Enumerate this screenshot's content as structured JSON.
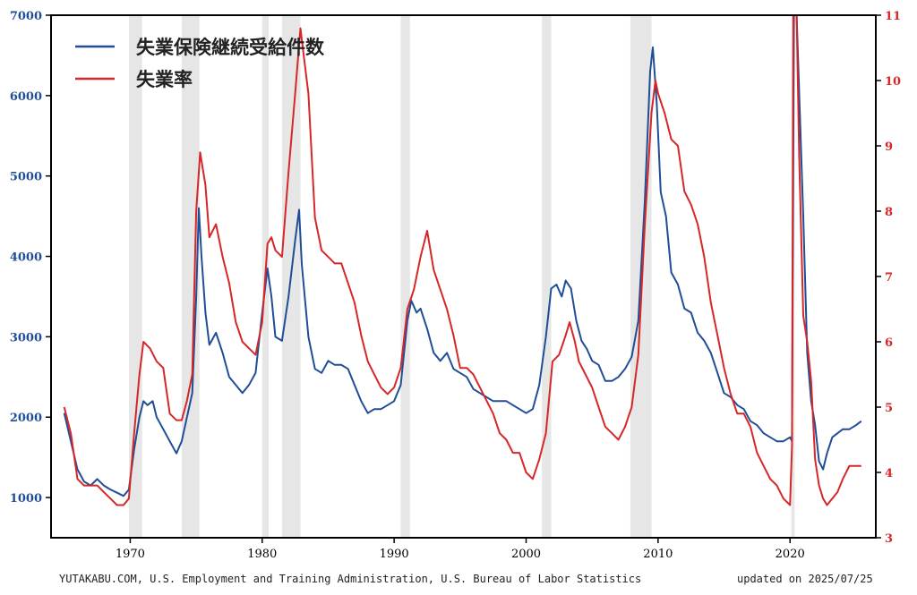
{
  "chart_data": {
    "type": "line",
    "dual_axis": true,
    "x_range": [
      1964,
      2026.5
    ],
    "x_ticks": [
      1970,
      1980,
      1990,
      2000,
      2010,
      2020
    ],
    "y_left": {
      "range": [
        500,
        7000
      ],
      "ticks": [
        1000,
        2000,
        3000,
        4000,
        5000,
        6000,
        7000
      ],
      "color": "#1f4e96"
    },
    "y_right": {
      "range": [
        3,
        11
      ],
      "ticks": [
        3,
        4,
        5,
        6,
        7,
        8,
        9,
        10,
        11
      ],
      "color": "#d62728"
    },
    "grid": false,
    "legend_position": "top-left",
    "recessions": [
      [
        1969.9,
        1970.9
      ],
      [
        1973.9,
        1975.25
      ],
      [
        1980.0,
        1980.5
      ],
      [
        1981.5,
        1982.9
      ],
      [
        1990.5,
        1991.2
      ],
      [
        2001.2,
        2001.9
      ],
      [
        2007.9,
        2009.5
      ],
      [
        2020.1,
        2020.35
      ]
    ],
    "series": [
      {
        "name": "失業保険継続受給件数",
        "axis": "left",
        "color": "#1f4e96",
        "points": [
          [
            1965.0,
            2050
          ],
          [
            1965.5,
            1700
          ],
          [
            1966.0,
            1350
          ],
          [
            1966.5,
            1200
          ],
          [
            1967.0,
            1150
          ],
          [
            1967.5,
            1230
          ],
          [
            1968.0,
            1150
          ],
          [
            1968.5,
            1100
          ],
          [
            1969.0,
            1060
          ],
          [
            1969.5,
            1020
          ],
          [
            1969.9,
            1100
          ],
          [
            1970.3,
            1600
          ],
          [
            1970.7,
            2000
          ],
          [
            1971.0,
            2200
          ],
          [
            1971.3,
            2150
          ],
          [
            1971.7,
            2200
          ],
          [
            1972.0,
            2000
          ],
          [
            1972.5,
            1850
          ],
          [
            1973.0,
            1700
          ],
          [
            1973.5,
            1550
          ],
          [
            1973.9,
            1700
          ],
          [
            1974.3,
            2000
          ],
          [
            1974.7,
            2300
          ],
          [
            1975.0,
            3500
          ],
          [
            1975.2,
            4600
          ],
          [
            1975.4,
            4000
          ],
          [
            1975.7,
            3300
          ],
          [
            1976.0,
            2900
          ],
          [
            1976.5,
            3050
          ],
          [
            1977.0,
            2800
          ],
          [
            1977.5,
            2500
          ],
          [
            1978.0,
            2400
          ],
          [
            1978.5,
            2300
          ],
          [
            1979.0,
            2400
          ],
          [
            1979.5,
            2550
          ],
          [
            1980.0,
            3300
          ],
          [
            1980.4,
            3850
          ],
          [
            1980.7,
            3500
          ],
          [
            1981.0,
            3000
          ],
          [
            1981.5,
            2950
          ],
          [
            1982.0,
            3500
          ],
          [
            1982.5,
            4200
          ],
          [
            1982.8,
            4580
          ],
          [
            1983.0,
            3900
          ],
          [
            1983.5,
            3000
          ],
          [
            1984.0,
            2600
          ],
          [
            1984.5,
            2550
          ],
          [
            1985.0,
            2700
          ],
          [
            1985.5,
            2650
          ],
          [
            1986.0,
            2650
          ],
          [
            1986.5,
            2600
          ],
          [
            1987.0,
            2400
          ],
          [
            1987.5,
            2200
          ],
          [
            1988.0,
            2050
          ],
          [
            1988.5,
            2100
          ],
          [
            1989.0,
            2100
          ],
          [
            1989.5,
            2150
          ],
          [
            1990.0,
            2200
          ],
          [
            1990.5,
            2400
          ],
          [
            1991.0,
            3200
          ],
          [
            1991.3,
            3450
          ],
          [
            1991.7,
            3300
          ],
          [
            1992.0,
            3350
          ],
          [
            1992.5,
            3100
          ],
          [
            1993.0,
            2800
          ],
          [
            1993.5,
            2700
          ],
          [
            1994.0,
            2800
          ],
          [
            1994.5,
            2600
          ],
          [
            1995.0,
            2550
          ],
          [
            1995.5,
            2500
          ],
          [
            1996.0,
            2350
          ],
          [
            1996.5,
            2300
          ],
          [
            1997.0,
            2250
          ],
          [
            1997.5,
            2200
          ],
          [
            1998.0,
            2200
          ],
          [
            1998.5,
            2200
          ],
          [
            1999.0,
            2150
          ],
          [
            1999.5,
            2100
          ],
          [
            2000.0,
            2050
          ],
          [
            2000.5,
            2100
          ],
          [
            2001.0,
            2400
          ],
          [
            2001.5,
            3000
          ],
          [
            2001.9,
            3600
          ],
          [
            2002.3,
            3650
          ],
          [
            2002.7,
            3500
          ],
          [
            2003.0,
            3700
          ],
          [
            2003.4,
            3600
          ],
          [
            2003.8,
            3200
          ],
          [
            2004.2,
            2950
          ],
          [
            2004.6,
            2850
          ],
          [
            2005.0,
            2700
          ],
          [
            2005.5,
            2650
          ],
          [
            2006.0,
            2450
          ],
          [
            2006.5,
            2450
          ],
          [
            2007.0,
            2500
          ],
          [
            2007.5,
            2600
          ],
          [
            2008.0,
            2750
          ],
          [
            2008.5,
            3200
          ],
          [
            2009.0,
            4700
          ],
          [
            2009.4,
            6300
          ],
          [
            2009.6,
            6600
          ],
          [
            2009.9,
            5900
          ],
          [
            2010.2,
            4800
          ],
          [
            2010.6,
            4500
          ],
          [
            2011.0,
            3800
          ],
          [
            2011.5,
            3650
          ],
          [
            2012.0,
            3350
          ],
          [
            2012.5,
            3300
          ],
          [
            2013.0,
            3050
          ],
          [
            2013.5,
            2950
          ],
          [
            2014.0,
            2800
          ],
          [
            2014.5,
            2550
          ],
          [
            2015.0,
            2300
          ],
          [
            2015.5,
            2250
          ],
          [
            2016.0,
            2150
          ],
          [
            2016.5,
            2100
          ],
          [
            2017.0,
            1950
          ],
          [
            2017.5,
            1900
          ],
          [
            2018.0,
            1800
          ],
          [
            2018.5,
            1750
          ],
          [
            2019.0,
            1700
          ],
          [
            2019.5,
            1700
          ],
          [
            2020.0,
            1750
          ],
          [
            2020.15,
            1700
          ],
          [
            2020.3,
            7000
          ],
          [
            2020.5,
            7000
          ],
          [
            2020.8,
            5500
          ],
          [
            2021.0,
            4500
          ],
          [
            2021.3,
            2800
          ],
          [
            2021.6,
            2200
          ],
          [
            2021.9,
            1900
          ],
          [
            2022.2,
            1450
          ],
          [
            2022.5,
            1350
          ],
          [
            2022.8,
            1550
          ],
          [
            2023.2,
            1750
          ],
          [
            2023.6,
            1800
          ],
          [
            2024.0,
            1850
          ],
          [
            2024.5,
            1850
          ],
          [
            2025.0,
            1900
          ],
          [
            2025.4,
            1950
          ]
        ]
      },
      {
        "name": "失業率",
        "axis": "right",
        "color": "#d62728",
        "points": [
          [
            1965.0,
            5.0
          ],
          [
            1965.5,
            4.6
          ],
          [
            1966.0,
            3.9
          ],
          [
            1966.5,
            3.8
          ],
          [
            1967.0,
            3.8
          ],
          [
            1967.5,
            3.8
          ],
          [
            1968.0,
            3.7
          ],
          [
            1968.5,
            3.6
          ],
          [
            1969.0,
            3.5
          ],
          [
            1969.5,
            3.5
          ],
          [
            1969.9,
            3.6
          ],
          [
            1970.3,
            4.6
          ],
          [
            1970.7,
            5.5
          ],
          [
            1971.0,
            6.0
          ],
          [
            1971.5,
            5.9
          ],
          [
            1972.0,
            5.7
          ],
          [
            1972.5,
            5.6
          ],
          [
            1973.0,
            4.9
          ],
          [
            1973.5,
            4.8
          ],
          [
            1973.9,
            4.8
          ],
          [
            1974.3,
            5.1
          ],
          [
            1974.7,
            5.5
          ],
          [
            1975.0,
            8.0
          ],
          [
            1975.3,
            8.9
          ],
          [
            1975.7,
            8.4
          ],
          [
            1976.0,
            7.6
          ],
          [
            1976.5,
            7.8
          ],
          [
            1977.0,
            7.3
          ],
          [
            1977.5,
            6.9
          ],
          [
            1978.0,
            6.3
          ],
          [
            1978.5,
            6.0
          ],
          [
            1979.0,
            5.9
          ],
          [
            1979.5,
            5.8
          ],
          [
            1980.0,
            6.3
          ],
          [
            1980.4,
            7.5
          ],
          [
            1980.7,
            7.6
          ],
          [
            1981.0,
            7.4
          ],
          [
            1981.5,
            7.3
          ],
          [
            1982.0,
            8.6
          ],
          [
            1982.5,
            9.8
          ],
          [
            1982.9,
            10.8
          ],
          [
            1983.2,
            10.3
          ],
          [
            1983.5,
            9.8
          ],
          [
            1984.0,
            7.9
          ],
          [
            1984.5,
            7.4
          ],
          [
            1985.0,
            7.3
          ],
          [
            1985.5,
            7.2
          ],
          [
            1986.0,
            7.2
          ],
          [
            1986.5,
            6.9
          ],
          [
            1987.0,
            6.6
          ],
          [
            1987.5,
            6.1
          ],
          [
            1988.0,
            5.7
          ],
          [
            1988.5,
            5.5
          ],
          [
            1989.0,
            5.3
          ],
          [
            1989.5,
            5.2
          ],
          [
            1990.0,
            5.3
          ],
          [
            1990.5,
            5.6
          ],
          [
            1991.0,
            6.5
          ],
          [
            1991.5,
            6.8
          ],
          [
            1992.0,
            7.3
          ],
          [
            1992.5,
            7.7
          ],
          [
            1993.0,
            7.1
          ],
          [
            1993.5,
            6.8
          ],
          [
            1994.0,
            6.5
          ],
          [
            1994.5,
            6.1
          ],
          [
            1995.0,
            5.6
          ],
          [
            1995.5,
            5.6
          ],
          [
            1996.0,
            5.5
          ],
          [
            1996.5,
            5.3
          ],
          [
            1997.0,
            5.1
          ],
          [
            1997.5,
            4.9
          ],
          [
            1998.0,
            4.6
          ],
          [
            1998.5,
            4.5
          ],
          [
            1999.0,
            4.3
          ],
          [
            1999.5,
            4.3
          ],
          [
            2000.0,
            4.0
          ],
          [
            2000.5,
            3.9
          ],
          [
            2001.0,
            4.2
          ],
          [
            2001.5,
            4.6
          ],
          [
            2002.0,
            5.7
          ],
          [
            2002.5,
            5.8
          ],
          [
            2003.0,
            6.1
          ],
          [
            2003.3,
            6.3
          ],
          [
            2003.7,
            6.0
          ],
          [
            2004.0,
            5.7
          ],
          [
            2004.5,
            5.5
          ],
          [
            2005.0,
            5.3
          ],
          [
            2005.5,
            5.0
          ],
          [
            2006.0,
            4.7
          ],
          [
            2006.5,
            4.6
          ],
          [
            2007.0,
            4.5
          ],
          [
            2007.5,
            4.7
          ],
          [
            2008.0,
            5.0
          ],
          [
            2008.5,
            5.8
          ],
          [
            2009.0,
            7.8
          ],
          [
            2009.5,
            9.5
          ],
          [
            2009.8,
            10.0
          ],
          [
            2010.0,
            9.8
          ],
          [
            2010.5,
            9.5
          ],
          [
            2011.0,
            9.1
          ],
          [
            2011.5,
            9.0
          ],
          [
            2012.0,
            8.3
          ],
          [
            2012.5,
            8.1
          ],
          [
            2013.0,
            7.8
          ],
          [
            2013.5,
            7.3
          ],
          [
            2014.0,
            6.6
          ],
          [
            2014.5,
            6.1
          ],
          [
            2015.0,
            5.6
          ],
          [
            2015.5,
            5.2
          ],
          [
            2016.0,
            4.9
          ],
          [
            2016.5,
            4.9
          ],
          [
            2017.0,
            4.7
          ],
          [
            2017.5,
            4.3
          ],
          [
            2018.0,
            4.1
          ],
          [
            2018.5,
            3.9
          ],
          [
            2019.0,
            3.8
          ],
          [
            2019.5,
            3.6
          ],
          [
            2020.0,
            3.5
          ],
          [
            2020.15,
            4.4
          ],
          [
            2020.25,
            11.0
          ],
          [
            2020.5,
            11.0
          ],
          [
            2020.7,
            8.8
          ],
          [
            2021.0,
            6.4
          ],
          [
            2021.3,
            6.0
          ],
          [
            2021.6,
            5.4
          ],
          [
            2021.9,
            4.2
          ],
          [
            2022.2,
            3.8
          ],
          [
            2022.5,
            3.6
          ],
          [
            2022.8,
            3.5
          ],
          [
            2023.2,
            3.6
          ],
          [
            2023.6,
            3.7
          ],
          [
            2024.0,
            3.9
          ],
          [
            2024.5,
            4.1
          ],
          [
            2025.0,
            4.1
          ],
          [
            2025.4,
            4.1
          ]
        ]
      }
    ]
  },
  "footer": {
    "source": "YUTAKABU.COM, U.S. Employment and Training Administration, U.S. Bureau of Labor Statistics",
    "updated": "updated on 2025/07/25"
  }
}
